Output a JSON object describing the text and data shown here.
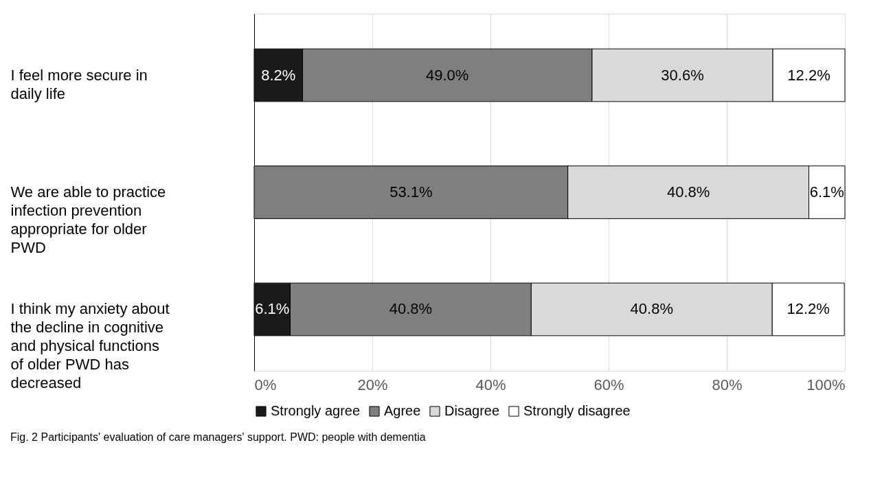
{
  "chart_data": {
    "type": "bar",
    "orientation": "horizontal",
    "stacked": true,
    "categories": [
      "I feel more secure in daily life",
      "We are able to practice infection prevention appropriate for older PWD",
      "I think my anxiety about the decline in cognitive and physical functions of older PWD has decreased"
    ],
    "series": [
      {
        "name": "Strongly agree",
        "color": "#1a1a1a",
        "values": [
          8.2,
          null,
          6.1
        ],
        "value_labels": [
          "8.2%",
          null,
          "6.1%"
        ]
      },
      {
        "name": "Agree",
        "color": "#7f7f7f",
        "values": [
          49.0,
          53.1,
          40.8
        ],
        "value_labels": [
          "49.0%",
          "53.1%",
          "40.8%"
        ]
      },
      {
        "name": "Disagree",
        "color": "#d9d9d9",
        "values": [
          30.6,
          40.8,
          40.8
        ],
        "value_labels": [
          "30.6%",
          "40.8%",
          "40.8%"
        ]
      },
      {
        "name": "Strongly disagree",
        "color": "#ffffff",
        "values": [
          12.2,
          6.1,
          12.2
        ],
        "value_labels": [
          "12.2%",
          "6.1%",
          "12.2%"
        ]
      }
    ],
    "xlim": [
      0,
      100
    ],
    "xticks": [
      {
        "value": 0,
        "label": "0%"
      },
      {
        "value": 20,
        "label": "20%"
      },
      {
        "value": 40,
        "label": "40%"
      },
      {
        "value": 60,
        "label": "60%"
      },
      {
        "value": 80,
        "label": "80%"
      },
      {
        "value": 100,
        "label": "100%"
      }
    ],
    "grid": "x",
    "legend": "bottom",
    "annotations": [
      "Fig. 2 Participants' evaluation of care managers' support. PWD: people with dementia"
    ]
  }
}
